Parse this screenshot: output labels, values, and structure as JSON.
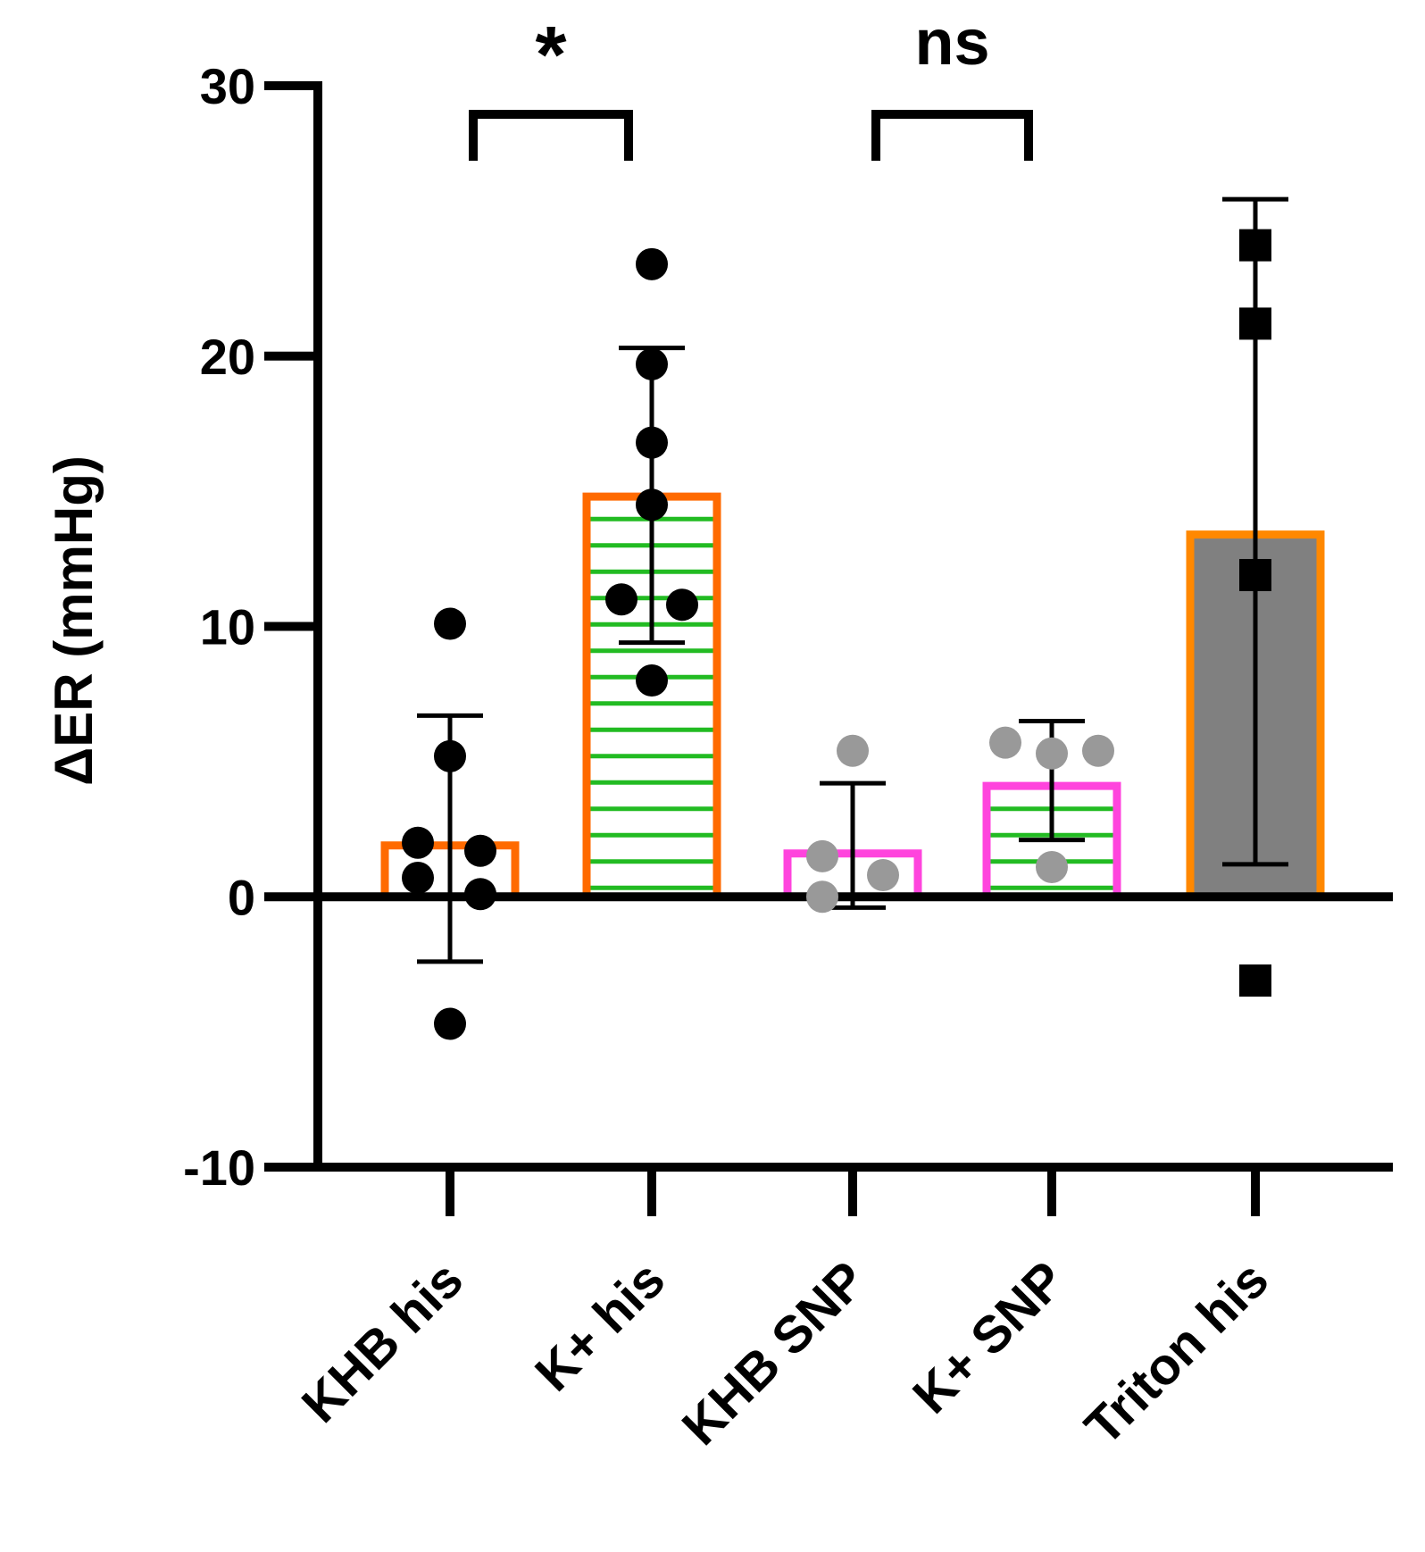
{
  "chart_data": {
    "type": "bar",
    "title": "",
    "xlabel": "",
    "ylabel": "ΔER (mmHg)",
    "ylim": [
      -10,
      30
    ],
    "yticks": [
      -10,
      0,
      10,
      20,
      30
    ],
    "grid": false,
    "categories": [
      "KHB his",
      "K+ his",
      "KHB SNP",
      "K+ SNP",
      "Triton his"
    ],
    "bars": [
      {
        "category": "KHB his",
        "mean": 1.9,
        "sd_low": -2.4,
        "sd_high": 6.7,
        "edge_color": "#ff6a00",
        "fill": "none",
        "hatch_color": null,
        "marker": "circle",
        "marker_color": "#000000",
        "points": [
          10.1,
          5.2,
          2.0,
          1.7,
          0.7,
          0.1,
          -4.7
        ]
      },
      {
        "category": "K+ his",
        "mean": 14.8,
        "sd_low": 9.4,
        "sd_high": 20.3,
        "edge_color": "#ff6a00",
        "fill": "none",
        "hatch_color": "#22bb22",
        "marker": "circle",
        "marker_color": "#000000",
        "points": [
          23.4,
          19.7,
          16.8,
          14.5,
          11.0,
          10.8,
          8.0
        ]
      },
      {
        "category": "KHB SNP",
        "mean": 1.6,
        "sd_low": -0.4,
        "sd_high": 4.2,
        "edge_color": "#ff44dd",
        "fill": "none",
        "hatch_color": null,
        "marker": "circle",
        "marker_color": "#999999",
        "points": [
          5.4,
          1.5,
          0.8,
          0.0
        ]
      },
      {
        "category": "K+ SNP",
        "mean": 4.1,
        "sd_low": 2.1,
        "sd_high": 6.5,
        "edge_color": "#ff44dd",
        "fill": "none",
        "hatch_color": "#22bb22",
        "marker": "circle",
        "marker_color": "#999999",
        "points": [
          5.7,
          5.3,
          5.4,
          1.1
        ]
      },
      {
        "category": "Triton his",
        "mean": 13.4,
        "sd_low": 1.2,
        "sd_high": 25.8,
        "edge_color": "#ff8800",
        "fill": "#808080",
        "hatch_color": null,
        "marker": "square",
        "marker_color": "#000000",
        "points": [
          24.1,
          21.2,
          11.9,
          -3.1
        ]
      }
    ],
    "annotations": [
      {
        "text": "*",
        "from": "KHB his",
        "to": "K+ his"
      },
      {
        "text": "ns",
        "from": "KHB SNP",
        "to": "K+ SNP"
      }
    ]
  }
}
